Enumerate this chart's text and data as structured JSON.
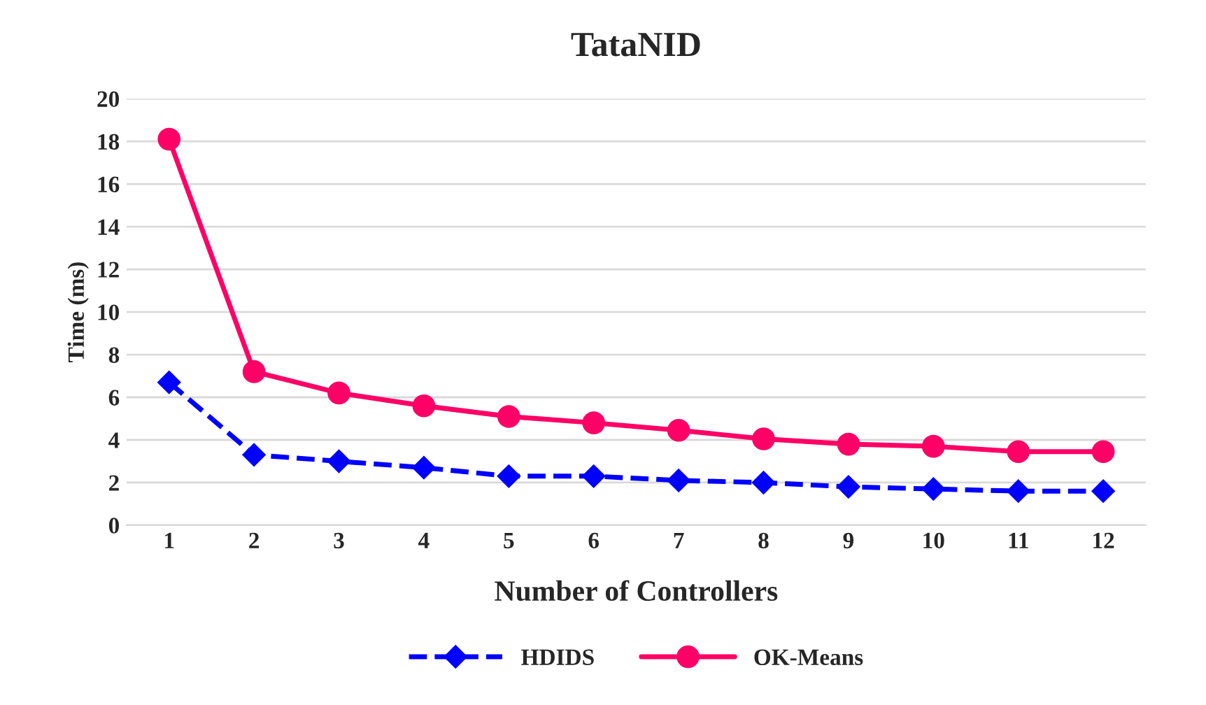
{
  "chart_data": {
    "type": "line",
    "title": "TataNID",
    "xlabel": "Number of Controllers",
    "ylabel": "Time (ms)",
    "categories": [
      "1",
      "2",
      "3",
      "4",
      "5",
      "6",
      "7",
      "8",
      "9",
      "10",
      "11",
      "12"
    ],
    "series": [
      {
        "name": "HDIDS",
        "color": "#0000ff",
        "marker": "diamond",
        "line_style": "dashed",
        "values": [
          6.7,
          3.3,
          3.0,
          2.7,
          2.3,
          2.3,
          2.1,
          2.0,
          1.8,
          1.7,
          1.6,
          1.6
        ]
      },
      {
        "name": "OK-Means",
        "color": "#ff0066",
        "marker": "circle",
        "line_style": "solid",
        "values": [
          18.1,
          7.2,
          6.2,
          5.6,
          5.1,
          4.8,
          4.45,
          4.05,
          3.8,
          3.7,
          3.45,
          3.45
        ]
      }
    ],
    "ylim": [
      0,
      20
    ],
    "yticks": [
      0,
      2,
      4,
      6,
      8,
      10,
      12,
      14,
      16,
      18,
      20
    ],
    "grid": "y",
    "legend": "bottom"
  }
}
